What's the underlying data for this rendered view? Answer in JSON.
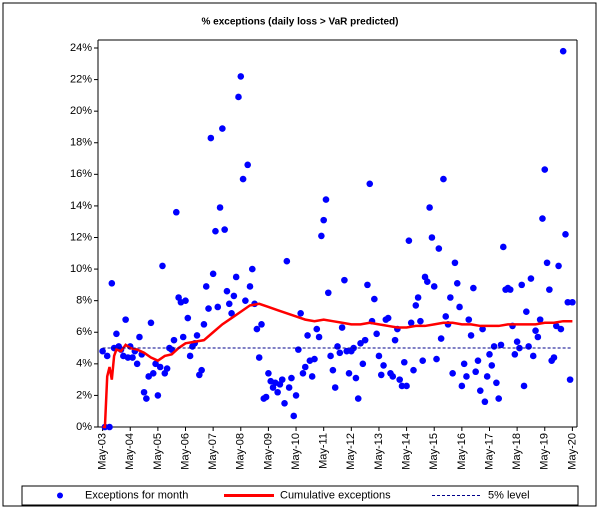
{
  "chart_data": {
    "type": "scatter",
    "title": "% exceptions (daily loss > VaR predicted)",
    "xlim": [
      -2,
      206
    ],
    "xticks": [
      {
        "value": 0,
        "label": "May-03"
      },
      {
        "value": 12,
        "label": "May-04"
      },
      {
        "value": 24,
        "label": "May-05"
      },
      {
        "value": 36,
        "label": "May-06"
      },
      {
        "value": 48,
        "label": "May-07"
      },
      {
        "value": 60,
        "label": "May-08"
      },
      {
        "value": 72,
        "label": "May-09"
      },
      {
        "value": 84,
        "label": "May-10"
      },
      {
        "value": 96,
        "label": "May-11"
      },
      {
        "value": 108,
        "label": "May-12"
      },
      {
        "value": 120,
        "label": "May-13"
      },
      {
        "value": 132,
        "label": "May-14"
      },
      {
        "value": 144,
        "label": "May-15"
      },
      {
        "value": 156,
        "label": "May-16"
      },
      {
        "value": 168,
        "label": "May-17"
      },
      {
        "value": 180,
        "label": "May-18"
      },
      {
        "value": 192,
        "label": "May-19"
      },
      {
        "value": 204,
        "label": "May-20"
      }
    ],
    "ylim": [
      0,
      24
    ],
    "yticks": [
      {
        "value": 0,
        "label": "0%"
      },
      {
        "value": 2,
        "label": "2%"
      },
      {
        "value": 4,
        "label": "4%"
      },
      {
        "value": 6,
        "label": "6%"
      },
      {
        "value": 8,
        "label": "8%"
      },
      {
        "value": 10,
        "label": "10%"
      },
      {
        "value": 12,
        "label": "12%"
      },
      {
        "value": 14,
        "label": "14%"
      },
      {
        "value": 16,
        "label": "16%"
      },
      {
        "value": 18,
        "label": "18%"
      },
      {
        "value": 20,
        "label": "20%"
      },
      {
        "value": 22,
        "label": "22%"
      },
      {
        "value": 24,
        "label": "24%"
      }
    ],
    "series": [
      {
        "name": "Exceptions for month",
        "type": "scatter",
        "color": "#0000ff",
        "x": [
          0,
          1,
          2,
          3,
          4,
          5,
          6,
          7,
          8,
          9,
          10,
          11,
          12,
          13,
          14,
          15,
          16,
          17,
          18,
          19,
          20,
          21,
          22,
          23,
          24,
          25,
          26,
          27,
          28,
          29,
          30,
          31,
          32,
          33,
          34,
          35,
          36,
          37,
          38,
          39,
          40,
          41,
          42,
          43,
          44,
          45,
          46,
          47,
          48,
          49,
          50,
          51,
          52,
          53,
          54,
          55,
          56,
          57,
          58,
          59,
          60,
          61,
          62,
          63,
          64,
          65,
          66,
          67,
          68,
          69,
          70,
          71,
          72,
          73,
          74,
          75,
          76,
          77,
          78,
          79,
          80,
          81,
          82,
          83,
          84,
          85,
          86,
          87,
          88,
          89,
          90,
          91,
          92,
          93,
          94,
          95,
          96,
          97,
          98,
          99,
          100,
          101,
          102,
          103,
          104,
          105,
          106,
          107,
          108,
          109,
          110,
          111,
          112,
          113,
          114,
          115,
          116,
          117,
          118,
          119,
          120,
          121,
          122,
          123,
          124,
          125,
          126,
          127,
          128,
          129,
          130,
          131,
          132,
          133,
          134,
          135,
          136,
          137,
          138,
          139,
          140,
          141,
          142,
          143,
          144,
          145,
          146,
          147,
          148,
          149,
          150,
          151,
          152,
          153,
          154,
          155,
          156,
          157,
          158,
          159,
          160,
          161,
          162,
          163,
          164,
          165,
          166,
          167,
          168,
          169,
          170,
          171,
          172,
          173,
          174,
          175,
          176,
          177,
          178,
          179,
          180,
          181,
          182,
          183,
          184,
          185,
          186,
          187,
          188,
          189,
          190,
          191,
          192,
          193,
          194,
          195,
          196,
          197,
          198,
          199,
          200,
          201,
          202,
          203,
          204
        ],
        "values": [
          4.8,
          0,
          4.5,
          0,
          9.1,
          5.0,
          5.9,
          5.1,
          4.9,
          4.5,
          6.8,
          4.4,
          5.1,
          4.4,
          4.8,
          4.0,
          5.7,
          4.6,
          2.2,
          1.8,
          3.2,
          6.6,
          3.4,
          4.0,
          2.0,
          3.8,
          10.2,
          3.4,
          3.7,
          5.0,
          4.9,
          5.5,
          13.6,
          8.2,
          7.9,
          5.7,
          8.0,
          6.9,
          4.5,
          5.1,
          5.3,
          5.8,
          3.3,
          3.6,
          6.5,
          8.9,
          7.5,
          18.3,
          9.7,
          12.4,
          7.6,
          13.9,
          18.9,
          12.5,
          8.6,
          7.8,
          7.2,
          8.3,
          9.5,
          20.9,
          22.2,
          15.7,
          8.0,
          16.6,
          8.9,
          10.0,
          7.8,
          6.2,
          4.4,
          6.5,
          1.8,
          1.9,
          3.4,
          2.9,
          2.5,
          2.8,
          2.2,
          2.7,
          3.0,
          1.5,
          10.5,
          2.5,
          3.1,
          0.7,
          2.0,
          4.9,
          7.2,
          3.4,
          3.8,
          5.8,
          4.2,
          3.2,
          4.3,
          6.2,
          5.7,
          12.1,
          13.1,
          14.4,
          8.5,
          4.5,
          3.6,
          2.5,
          5.1,
          4.7,
          6.3,
          9.3,
          4.8,
          3.4,
          4.8,
          5.0,
          3.1,
          1.8,
          5.3,
          4.0,
          5.5,
          9.0,
          15.4,
          6.7,
          8.1,
          5.9,
          4.5,
          3.3,
          3.9,
          6.8,
          6.9,
          3.4,
          3.2,
          5.5,
          6.2,
          3.0,
          2.6,
          4.1,
          2.6,
          11.8,
          6.6,
          3.6,
          7.7,
          8.2,
          6.7,
          4.2,
          9.5,
          9.2,
          13.9,
          12.0,
          8.9,
          4.3,
          11.3,
          5.6,
          15.7,
          7.0,
          6.5,
          8.2,
          3.4,
          10.4,
          9.1,
          7.6,
          2.6,
          4.0,
          3.2,
          6.8,
          5.8,
          8.8,
          3.5,
          4.2,
          2.3,
          6.2,
          1.6,
          3.2,
          4.6,
          3.9,
          5.1,
          2.8,
          1.8,
          5.2,
          11.4,
          8.7,
          8.8,
          8.7,
          6.4,
          4.6,
          5.4,
          5.0,
          9.0,
          2.6,
          7.3,
          5.1,
          9.4,
          4.5,
          6.1,
          5.7,
          6.8,
          13.2,
          16.3,
          10.4,
          8.7,
          4.2,
          4.4,
          6.4,
          10.2,
          6.2,
          23.8,
          12.2,
          7.9,
          3.0,
          7.9
        ]
      },
      {
        "name": "Cumulative exceptions",
        "type": "line",
        "color": "#ff0000",
        "x": [
          0,
          1,
          2,
          3,
          4,
          5,
          6,
          8,
          10,
          12,
          15,
          18,
          21,
          24,
          27,
          30,
          33,
          36,
          40,
          44,
          48,
          52,
          56,
          60,
          64,
          68,
          72,
          76,
          80,
          84,
          88,
          92,
          96,
          100,
          104,
          108,
          112,
          116,
          120,
          124,
          128,
          132,
          136,
          140,
          144,
          148,
          152,
          156,
          160,
          164,
          168,
          172,
          176,
          180,
          184,
          188,
          192,
          196,
          200,
          204
        ],
        "values": [
          0,
          0,
          3.2,
          3.8,
          3.0,
          4.5,
          4.9,
          4.8,
          5.2,
          5.0,
          4.9,
          4.7,
          4.4,
          4.2,
          4.5,
          4.6,
          5.0,
          5.3,
          5.4,
          5.5,
          6.0,
          6.5,
          6.9,
          7.3,
          7.7,
          7.8,
          7.6,
          7.4,
          7.2,
          7.0,
          6.8,
          6.7,
          6.8,
          6.7,
          6.6,
          6.5,
          6.5,
          6.6,
          6.5,
          6.4,
          6.3,
          6.3,
          6.4,
          6.4,
          6.5,
          6.6,
          6.6,
          6.5,
          6.5,
          6.4,
          6.4,
          6.4,
          6.5,
          6.5,
          6.5,
          6.5,
          6.6,
          6.6,
          6.7,
          6.7
        ]
      },
      {
        "name": "5% level",
        "type": "line",
        "dashed": true,
        "color": "#00008b",
        "x": [
          0,
          204
        ],
        "values": [
          5,
          5
        ]
      }
    ]
  }
}
